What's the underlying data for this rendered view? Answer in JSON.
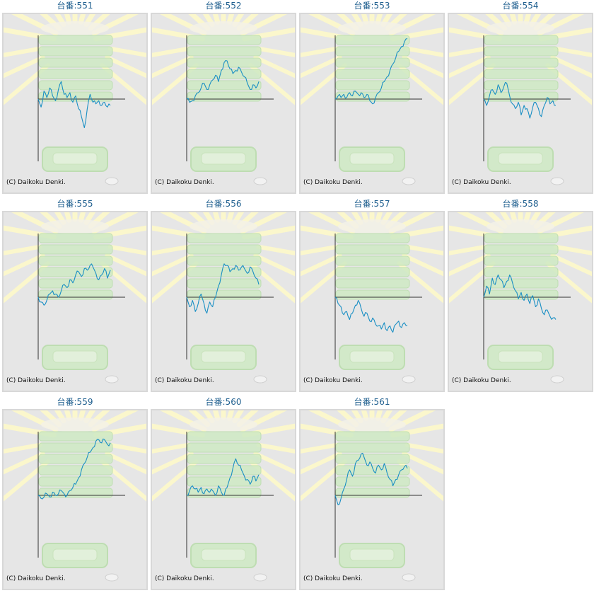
{
  "charts": [
    {
      "title": "台番:551",
      "copyright": "(C) Daikoku Denki."
    },
    {
      "title": "台番:552",
      "copyright": "(C) Daikoku Denki."
    },
    {
      "title": "台番:553",
      "copyright": "(C) Daikoku Denki."
    },
    {
      "title": "台番:554",
      "copyright": "(C) Daikoku Denki."
    },
    {
      "title": "台番:555",
      "copyright": "(C) Daikoku Denki."
    },
    {
      "title": "台番:556",
      "copyright": "(C) Daikoku Denki."
    },
    {
      "title": "台番:557",
      "copyright": "(C) Daikoku Denki."
    },
    {
      "title": "台番:558",
      "copyright": "(C) Daikoku Denki."
    },
    {
      "title": "台番:559",
      "copyright": "(C) Daikoku Denki."
    },
    {
      "title": "台番:560",
      "copyright": "(C) Daikoku Denki."
    },
    {
      "title": "台番:561",
      "copyright": "(C) Daikoku Denki."
    }
  ],
  "colors": {
    "line": "#1a8fc4",
    "axis": "#333333",
    "background": "#e6e6e6",
    "title": "#1f5f8f",
    "rays": "#fbf7cc",
    "machine": "#cfeac4"
  },
  "chart_data": [
    {
      "type": "line",
      "title": "台番:551",
      "x": [
        0,
        4,
        8,
        12,
        16,
        20,
        24,
        28,
        32,
        36,
        40,
        44,
        48,
        52,
        56,
        60,
        64,
        68,
        72,
        76,
        80,
        84,
        88,
        92,
        96,
        100
      ],
      "y": [
        0,
        -0.25,
        0.25,
        0.05,
        0.35,
        0.1,
        -0.05,
        0.3,
        0.55,
        0.15,
        0.05,
        0.2,
        -0.1,
        0.1,
        -0.3,
        -0.55,
        -0.9,
        -0.3,
        0.15,
        -0.1,
        -0.15,
        -0.05,
        -0.2,
        -0.1,
        -0.25,
        -0.2
      ]
    },
    {
      "type": "line",
      "title": "台番:552",
      "x": [
        0,
        4,
        8,
        12,
        16,
        20,
        24,
        28,
        32,
        36,
        40,
        44,
        48,
        52,
        56,
        60,
        64,
        68,
        72,
        76,
        80,
        84,
        88,
        92,
        96,
        100
      ],
      "y": [
        0,
        -0.1,
        -0.05,
        0.1,
        0.2,
        0.35,
        0.5,
        0.3,
        0.45,
        0.6,
        0.75,
        0.55,
        0.9,
        1.15,
        1.2,
        0.95,
        0.8,
        0.9,
        1.0,
        0.85,
        0.7,
        0.5,
        0.3,
        0.45,
        0.35,
        0.55
      ]
    },
    {
      "type": "line",
      "title": "台番:553",
      "x": [
        0,
        4,
        8,
        12,
        16,
        20,
        24,
        28,
        32,
        36,
        40,
        44,
        48,
        52,
        56,
        60,
        64,
        68,
        72,
        76,
        80,
        84,
        88,
        92,
        96,
        100
      ],
      "y": [
        0,
        0.1,
        0.05,
        0.15,
        0.05,
        0.2,
        0.1,
        0.25,
        0.15,
        0.2,
        0.05,
        0.15,
        -0.05,
        -0.15,
        0.05,
        0.2,
        0.35,
        0.55,
        0.7,
        0.9,
        1.1,
        1.3,
        1.5,
        1.65,
        1.8,
        1.9
      ]
    },
    {
      "type": "line",
      "title": "台番:554",
      "x": [
        0,
        4,
        8,
        12,
        16,
        20,
        24,
        28,
        32,
        36,
        40,
        44,
        48,
        52,
        56,
        60,
        64,
        68,
        72,
        76,
        80,
        84,
        88,
        92,
        96,
        100
      ],
      "y": [
        0,
        -0.2,
        0.1,
        0.3,
        0.15,
        0.45,
        0.2,
        0.4,
        0.5,
        0.1,
        -0.15,
        -0.3,
        -0.1,
        -0.5,
        -0.2,
        -0.3,
        -0.6,
        -0.25,
        -0.1,
        -0.3,
        -0.55,
        -0.2,
        0.05,
        -0.15,
        -0.05,
        -0.2
      ]
    },
    {
      "type": "line",
      "title": "台番:555",
      "x": [
        0,
        4,
        8,
        12,
        16,
        20,
        24,
        28,
        32,
        36,
        40,
        44,
        48,
        52,
        56,
        60,
        64,
        68,
        72,
        76,
        80,
        84,
        88,
        92,
        96,
        100
      ],
      "y": [
        0,
        -0.15,
        -0.25,
        -0.1,
        0.1,
        0.2,
        0.1,
        0.0,
        0.2,
        0.4,
        0.3,
        0.55,
        0.45,
        0.7,
        0.8,
        0.65,
        0.9,
        0.85,
        1.0,
        0.95,
        0.75,
        0.55,
        0.7,
        0.9,
        0.6,
        0.85
      ]
    },
    {
      "type": "line",
      "title": "台番:556",
      "x": [
        0,
        4,
        8,
        12,
        16,
        20,
        24,
        28,
        32,
        36,
        40,
        44,
        48,
        52,
        56,
        60,
        64,
        68,
        72,
        76,
        80,
        84,
        88,
        92,
        96,
        100
      ],
      "y": [
        0,
        -0.3,
        -0.1,
        -0.45,
        -0.2,
        0.1,
        -0.2,
        -0.5,
        -0.15,
        -0.3,
        0.0,
        0.35,
        0.7,
        1.05,
        1.0,
        0.8,
        0.9,
        1.0,
        0.85,
        0.95,
        0.9,
        0.75,
        0.95,
        0.8,
        0.6,
        0.4
      ]
    },
    {
      "type": "line",
      "title": "台番:557",
      "x": [
        0,
        4,
        8,
        12,
        16,
        20,
        24,
        28,
        32,
        36,
        40,
        44,
        48,
        52,
        56,
        60,
        64,
        68,
        72,
        76,
        80,
        84,
        88,
        92,
        96,
        100
      ],
      "y": [
        0,
        -0.2,
        -0.3,
        -0.55,
        -0.45,
        -0.7,
        -0.5,
        -0.25,
        -0.1,
        -0.35,
        -0.6,
        -0.5,
        -0.75,
        -0.65,
        -0.85,
        -0.9,
        -1.0,
        -0.8,
        -1.05,
        -0.9,
        -1.1,
        -0.85,
        -0.75,
        -0.95,
        -0.8,
        -0.9
      ]
    },
    {
      "type": "line",
      "title": "台番:558",
      "x": [
        0,
        4,
        8,
        12,
        16,
        20,
        24,
        28,
        32,
        36,
        40,
        44,
        48,
        52,
        56,
        60,
        64,
        68,
        72,
        76,
        80,
        84,
        88,
        92,
        96,
        100
      ],
      "y": [
        0,
        0.35,
        0.1,
        0.6,
        0.4,
        0.7,
        0.55,
        0.3,
        0.5,
        0.7,
        0.45,
        0.2,
        -0.05,
        0.15,
        -0.1,
        0.1,
        -0.2,
        0.05,
        -0.3,
        -0.05,
        -0.35,
        -0.55,
        -0.4,
        -0.6,
        -0.65,
        -0.7
      ]
    },
    {
      "type": "line",
      "title": "台番:559",
      "x": [
        0,
        4,
        8,
        12,
        16,
        20,
        24,
        28,
        32,
        36,
        40,
        44,
        48,
        52,
        56,
        60,
        64,
        68,
        72,
        76,
        80,
        84,
        88,
        92,
        96,
        100
      ],
      "y": [
        0,
        -0.1,
        -0.05,
        0.05,
        -0.05,
        0.1,
        0.0,
        0.05,
        0.15,
        0.05,
        0.0,
        0.15,
        0.25,
        0.35,
        0.55,
        0.8,
        1.0,
        1.2,
        1.35,
        1.5,
        1.7,
        1.75,
        1.65,
        1.75,
        1.6,
        1.65
      ]
    },
    {
      "type": "line",
      "title": "台番:560",
      "x": [
        0,
        4,
        8,
        12,
        16,
        20,
        24,
        28,
        32,
        36,
        40,
        44,
        48,
        52,
        56,
        60,
        64,
        68,
        72,
        76,
        80,
        84,
        88,
        92,
        96,
        100
      ],
      "y": [
        0,
        0.15,
        0.3,
        0.2,
        0.1,
        0.25,
        0.05,
        0.2,
        0.1,
        0.15,
        0.0,
        0.3,
        0.1,
        0.0,
        0.25,
        0.55,
        0.85,
        1.15,
        0.95,
        0.8,
        0.6,
        0.5,
        0.35,
        0.6,
        0.45,
        0.65
      ]
    },
    {
      "type": "line",
      "title": "台番:561",
      "x": [
        0,
        4,
        8,
        12,
        16,
        20,
        24,
        28,
        32,
        36,
        40,
        44,
        48,
        52,
        56,
        60,
        64,
        68,
        72,
        76,
        80,
        84,
        88,
        92,
        96,
        100
      ],
      "y": [
        0,
        -0.3,
        -0.1,
        0.2,
        0.5,
        0.8,
        0.6,
        1.0,
        1.1,
        1.3,
        1.2,
        0.95,
        1.05,
        0.85,
        0.7,
        0.95,
        0.8,
        1.0,
        0.7,
        0.5,
        0.3,
        0.5,
        0.65,
        0.8,
        0.9,
        0.85
      ]
    }
  ]
}
